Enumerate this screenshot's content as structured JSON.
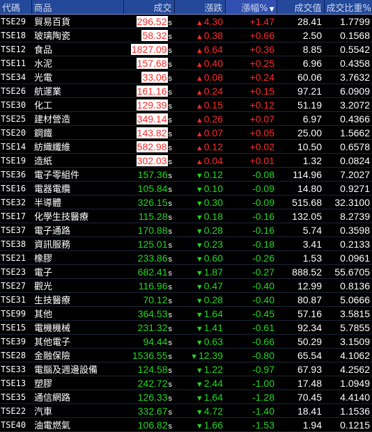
{
  "headers": {
    "code": "代碼",
    "name": "商品",
    "price": "成交",
    "change": "漲跌",
    "change_pct": "漲幅%",
    "sort_marker": "▼",
    "volume": "成交值",
    "ratio": "成交比重%"
  },
  "rows": [
    {
      "code": "TSE29",
      "name": "貿易百貨",
      "price": "296.52",
      "suffix": "s",
      "change": "4.30",
      "pct": "+1.47",
      "volume": "28.41",
      "ratio": "1.7799",
      "dir": "up"
    },
    {
      "code": "TSE18",
      "name": "玻璃陶瓷",
      "price": "58.32",
      "suffix": "s",
      "change": "0.38",
      "pct": "+0.66",
      "volume": "2.50",
      "ratio": "0.1568",
      "dir": "up"
    },
    {
      "code": "TSE12",
      "name": "食品",
      "price": "1827.09",
      "suffix": "s",
      "change": "6.64",
      "pct": "+0.36",
      "volume": "8.85",
      "ratio": "0.5542",
      "dir": "up"
    },
    {
      "code": "TSE11",
      "name": "水泥",
      "price": "157.68",
      "suffix": "s",
      "change": "0.40",
      "pct": "+0.25",
      "volume": "6.96",
      "ratio": "0.4358",
      "dir": "up"
    },
    {
      "code": "TSE34",
      "name": "光電",
      "price": "33.06",
      "suffix": "s",
      "change": "0.08",
      "pct": "+0.24",
      "volume": "60.06",
      "ratio": "3.7632",
      "dir": "up"
    },
    {
      "code": "TSE26",
      "name": "航運業",
      "price": "161.16",
      "suffix": "s",
      "change": "0.24",
      "pct": "+0.15",
      "volume": "97.21",
      "ratio": "6.0909",
      "dir": "up"
    },
    {
      "code": "TSE30",
      "name": "化工",
      "price": "129.39",
      "suffix": "s",
      "change": "0.15",
      "pct": "+0.12",
      "volume": "51.19",
      "ratio": "3.2072",
      "dir": "up"
    },
    {
      "code": "TSE25",
      "name": "建材營造",
      "price": "349.14",
      "suffix": "s",
      "change": "0.26",
      "pct": "+0.07",
      "volume": "6.97",
      "ratio": "0.4366",
      "dir": "up"
    },
    {
      "code": "TSE20",
      "name": "鋼鐵",
      "price": "143.82",
      "suffix": "s",
      "change": "0.07",
      "pct": "+0.05",
      "volume": "25.00",
      "ratio": "1.5662",
      "dir": "up"
    },
    {
      "code": "TSE14",
      "name": "紡織纖維",
      "price": "582.98",
      "suffix": "s",
      "change": "0.12",
      "pct": "+0.02",
      "volume": "10.50",
      "ratio": "0.6578",
      "dir": "up"
    },
    {
      "code": "TSE19",
      "name": "造紙",
      "price": "302.03",
      "suffix": "s",
      "change": "0.04",
      "pct": "+0.01",
      "volume": "1.32",
      "ratio": "0.0824",
      "dir": "up"
    },
    {
      "code": "TSE36",
      "name": "電子零組件",
      "price": "157.36",
      "suffix": "s",
      "change": "0.12",
      "pct": "-0.08",
      "volume": "114.96",
      "ratio": "7.2027",
      "dir": "down"
    },
    {
      "code": "TSE16",
      "name": "電器電纜",
      "price": "105.84",
      "suffix": "s",
      "change": "0.10",
      "pct": "-0.09",
      "volume": "14.80",
      "ratio": "0.9271",
      "dir": "down"
    },
    {
      "code": "TSE32",
      "name": "半導體",
      "price": "326.15",
      "suffix": "s",
      "change": "0.30",
      "pct": "-0.09",
      "volume": "515.68",
      "ratio": "32.3100",
      "dir": "down"
    },
    {
      "code": "TSE17",
      "name": "化學生技醫療",
      "price": "115.28",
      "suffix": "s",
      "change": "0.18",
      "pct": "-0.16",
      "volume": "132.05",
      "ratio": "8.2739",
      "dir": "down"
    },
    {
      "code": "TSE37",
      "name": "電子通路",
      "price": "170.88",
      "suffix": "s",
      "change": "0.28",
      "pct": "-0.16",
      "volume": "5.74",
      "ratio": "0.3598",
      "dir": "down"
    },
    {
      "code": "TSE38",
      "name": "資訊服務",
      "price": "125.01",
      "suffix": "s",
      "change": "0.23",
      "pct": "-0.18",
      "volume": "3.41",
      "ratio": "0.2133",
      "dir": "down"
    },
    {
      "code": "TSE21",
      "name": "橡膠",
      "price": "233.86",
      "suffix": "s",
      "change": "0.60",
      "pct": "-0.26",
      "volume": "1.53",
      "ratio": "0.0961",
      "dir": "down"
    },
    {
      "code": "TSE23",
      "name": "電子",
      "price": "682.41",
      "suffix": "s",
      "change": "1.87",
      "pct": "-0.27",
      "volume": "888.52",
      "ratio": "55.6705",
      "dir": "down"
    },
    {
      "code": "TSE27",
      "name": "觀光",
      "price": "116.96",
      "suffix": "s",
      "change": "0.47",
      "pct": "-0.40",
      "volume": "12.99",
      "ratio": "0.8136",
      "dir": "down"
    },
    {
      "code": "TSE31",
      "name": "生技醫療",
      "price": "70.12",
      "suffix": "s",
      "change": "0.28",
      "pct": "-0.40",
      "volume": "80.87",
      "ratio": "5.0666",
      "dir": "down"
    },
    {
      "code": "TSE99",
      "name": "其他",
      "price": "364.53",
      "suffix": "s",
      "change": "1.64",
      "pct": "-0.45",
      "volume": "57.16",
      "ratio": "3.5815",
      "dir": "down"
    },
    {
      "code": "TSE15",
      "name": "電機機械",
      "price": "231.32",
      "suffix": "s",
      "change": "1.41",
      "pct": "-0.61",
      "volume": "92.34",
      "ratio": "5.7855",
      "dir": "down"
    },
    {
      "code": "TSE39",
      "name": "其他電子",
      "price": "94.44",
      "suffix": "s",
      "change": "0.63",
      "pct": "-0.66",
      "volume": "50.29",
      "ratio": "3.1509",
      "dir": "down"
    },
    {
      "code": "TSE28",
      "name": "金融保險",
      "price": "1536.55",
      "suffix": "s",
      "change": "12.39",
      "pct": "-0.80",
      "volume": "65.54",
      "ratio": "4.1062",
      "dir": "down"
    },
    {
      "code": "TSE33",
      "name": "電腦及週邊設備",
      "price": "124.58",
      "suffix": "s",
      "change": "1.22",
      "pct": "-0.97",
      "volume": "67.93",
      "ratio": "4.2562",
      "dir": "down"
    },
    {
      "code": "TSE13",
      "name": "塑膠",
      "price": "242.72",
      "suffix": "s",
      "change": "2.44",
      "pct": "-1.00",
      "volume": "17.48",
      "ratio": "1.0949",
      "dir": "down"
    },
    {
      "code": "TSE35",
      "name": "通信網路",
      "price": "126.33",
      "suffix": "s",
      "change": "1.64",
      "pct": "-1.28",
      "volume": "70.45",
      "ratio": "4.4140",
      "dir": "down"
    },
    {
      "code": "TSE22",
      "name": "汽車",
      "price": "332.67",
      "suffix": "s",
      "change": "4.72",
      "pct": "-1.40",
      "volume": "18.41",
      "ratio": "1.1536",
      "dir": "down"
    },
    {
      "code": "TSE40",
      "name": "油電燃氣",
      "price": "106.82",
      "suffix": "s",
      "change": "1.66",
      "pct": "-1.53",
      "volume": "1.94",
      "ratio": "0.1215",
      "dir": "down"
    }
  ],
  "colors": {
    "up": "#ff2a2a",
    "down": "#22d822",
    "header_bg": "#24499a"
  }
}
